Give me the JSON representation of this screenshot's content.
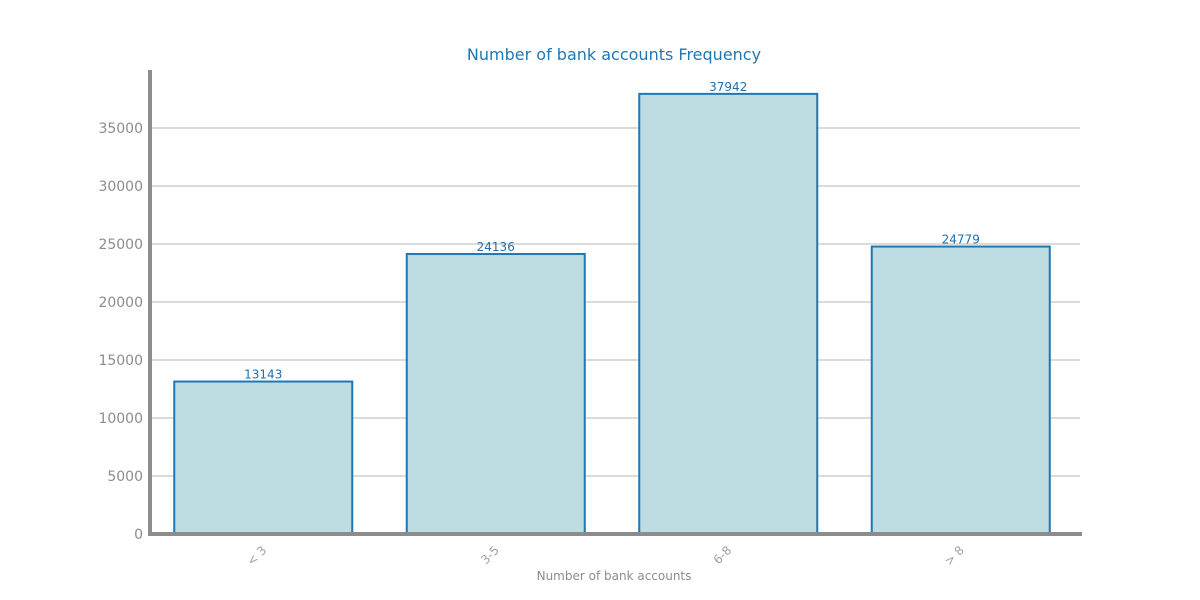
{
  "chart_data": {
    "type": "bar",
    "title": "Number of bank accounts Frequency",
    "xlabel": "Number of bank accounts",
    "ylabel": "",
    "categories": [
      "< 3",
      "3-5",
      "6-8",
      "> 8"
    ],
    "values": [
      13143,
      24136,
      37942,
      24779
    ],
    "ylim": [
      0,
      40000
    ],
    "yticks": [
      0,
      5000,
      10000,
      15000,
      20000,
      25000,
      30000,
      35000
    ],
    "grid": true,
    "legend": "none",
    "colors": {
      "bar_fill": "#bedde2",
      "bar_edge": "#1f77b4",
      "title": "#1f77b4",
      "data_label": "#1f6fb0",
      "axis": "#8c8c8c",
      "grid": "#cfcfcf"
    }
  }
}
